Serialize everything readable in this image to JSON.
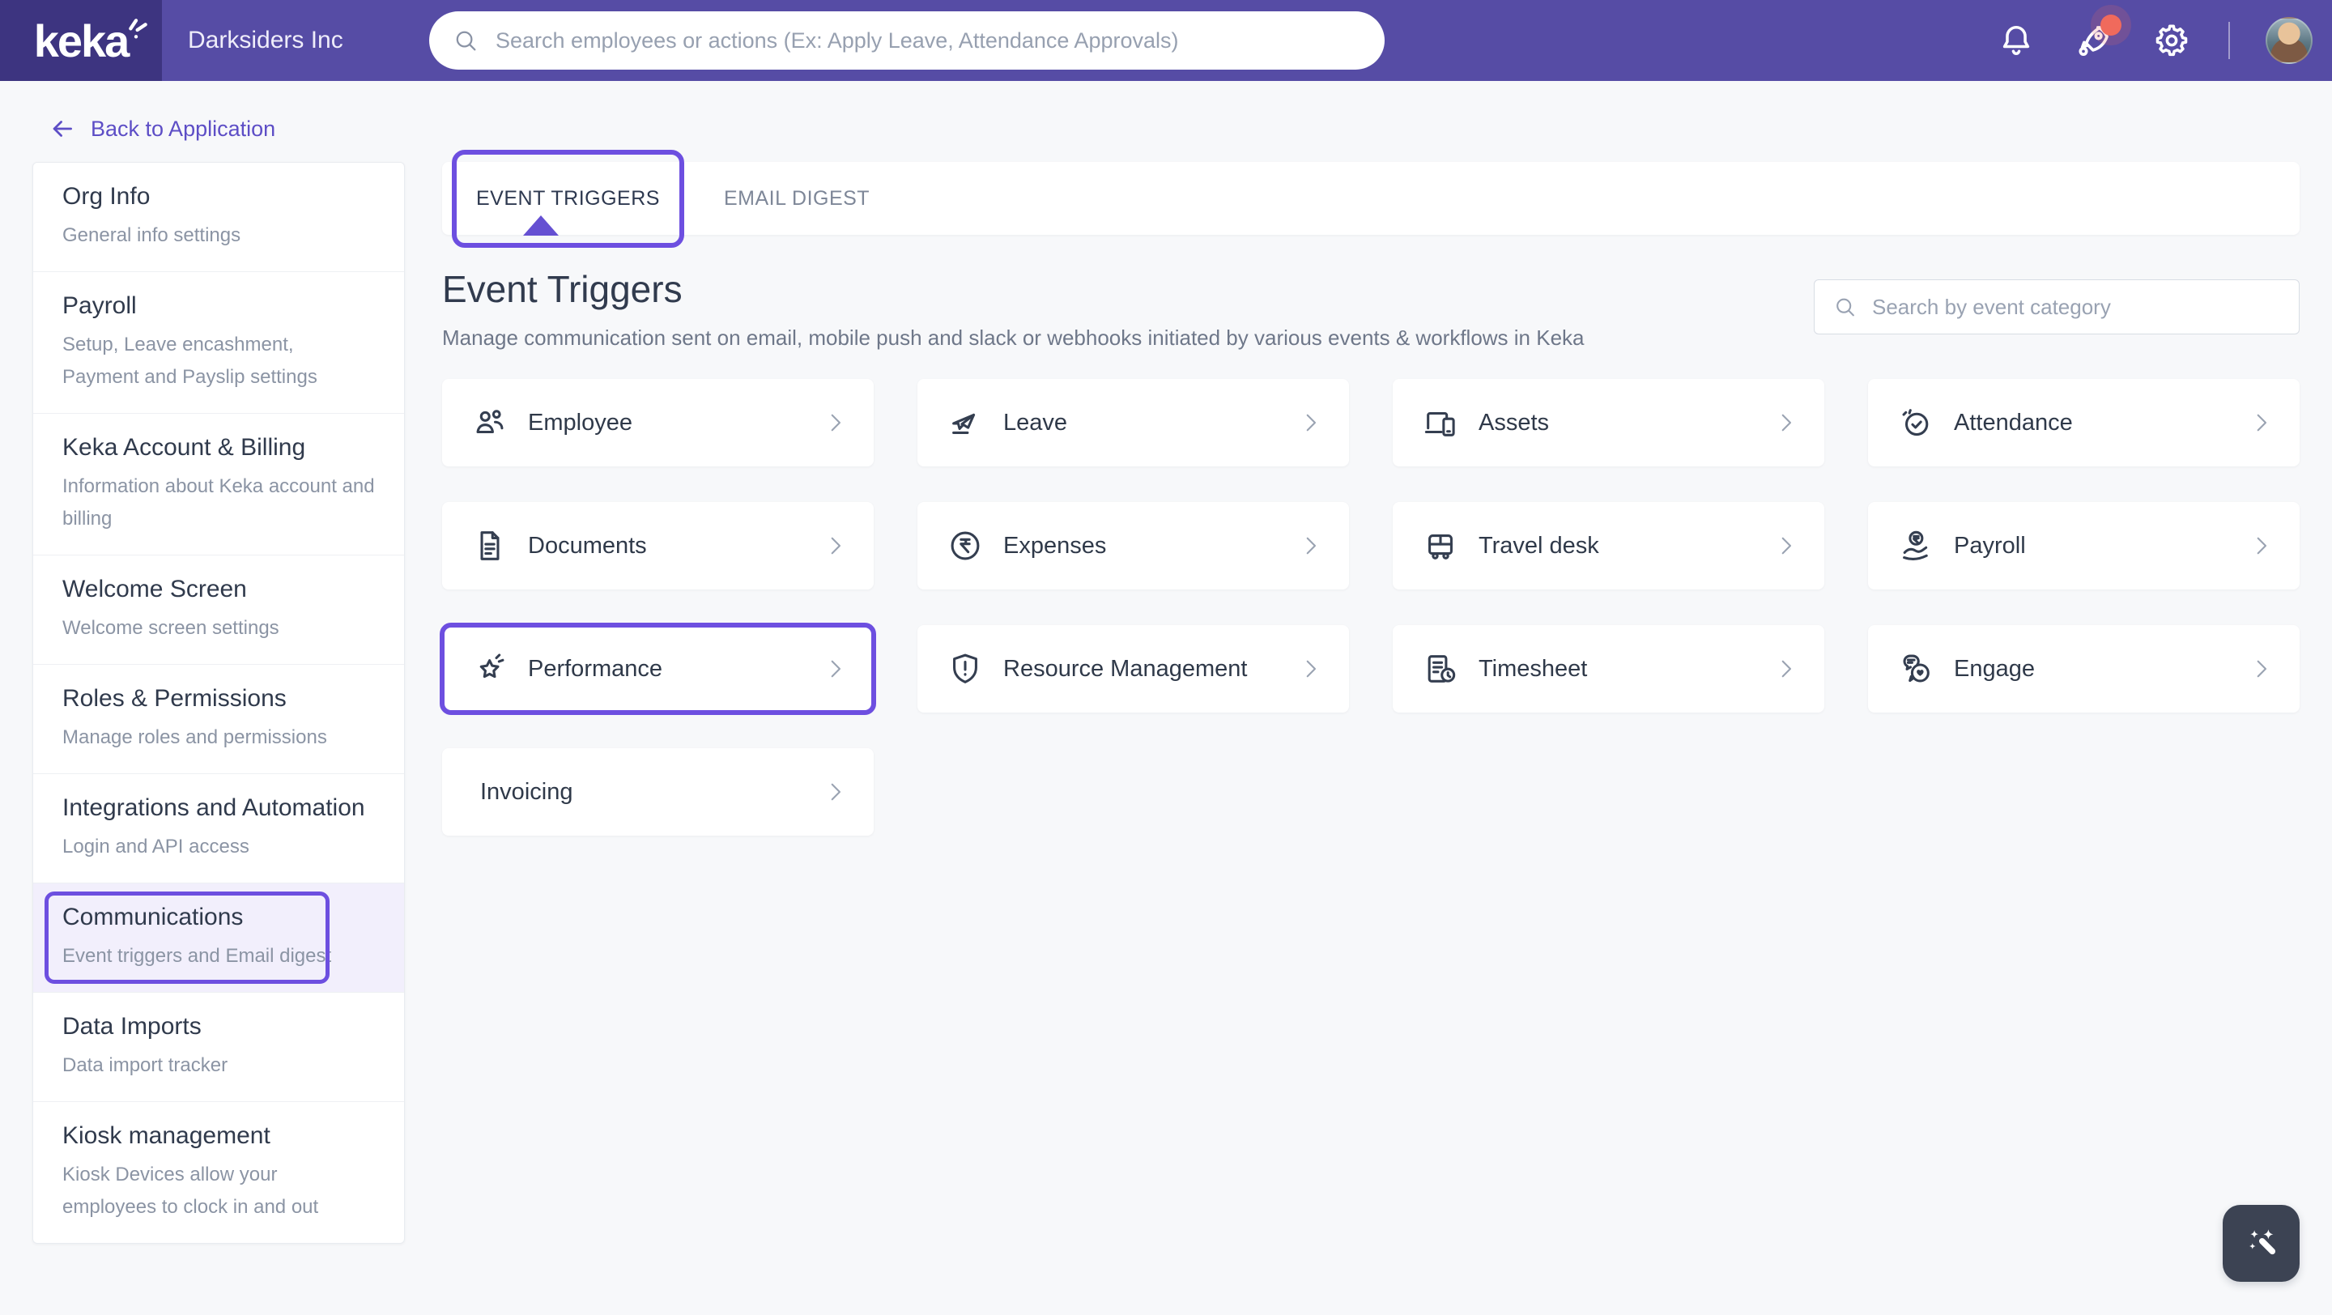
{
  "header": {
    "brand": "keka",
    "company": "Darksiders Inc",
    "search_placeholder": "Search employees or actions (Ex: Apply Leave, Attendance Approvals)",
    "icons": [
      "bell-icon",
      "rocket-icon",
      "gear-icon",
      "avatar"
    ],
    "rocket_has_notification_badge": true
  },
  "back_link": {
    "label": "Back to Application",
    "icon": "arrow-left-icon"
  },
  "sidebar": {
    "items": [
      {
        "title": "Org Info",
        "desc": "General info settings",
        "active": false
      },
      {
        "title": "Payroll",
        "desc": "Setup, Leave encashment, Payment and Payslip settings",
        "active": false
      },
      {
        "title": "Keka Account & Billing",
        "desc": "Information about Keka account and billing",
        "active": false
      },
      {
        "title": "Welcome Screen",
        "desc": "Welcome screen settings",
        "active": false
      },
      {
        "title": "Roles & Permissions",
        "desc": "Manage roles and permissions",
        "active": false
      },
      {
        "title": "Integrations and Automation",
        "desc": "Login and API access",
        "active": false
      },
      {
        "title": "Communications",
        "desc": "Event triggers and Email digest",
        "active": true
      },
      {
        "title": "Data Imports",
        "desc": "Data import tracker",
        "active": false
      },
      {
        "title": "Kiosk management",
        "desc": "Kiosk Devices allow your employees to clock in and out",
        "active": false
      }
    ]
  },
  "tabs": [
    {
      "label": "EVENT TRIGGERS",
      "active": true
    },
    {
      "label": "EMAIL DIGEST",
      "active": false
    }
  ],
  "main": {
    "title": "Event Triggers",
    "subtitle": "Manage communication sent on email, mobile push and slack or webhooks initiated by various events & workflows in Keka",
    "category_search_placeholder": "Search by event category",
    "cards": [
      {
        "label": "Employee",
        "icon": "employee-icon",
        "annotated": false
      },
      {
        "label": "Leave",
        "icon": "leave-icon",
        "annotated": false
      },
      {
        "label": "Assets",
        "icon": "assets-icon",
        "annotated": false
      },
      {
        "label": "Attendance",
        "icon": "attendance-icon",
        "annotated": false
      },
      {
        "label": "Documents",
        "icon": "documents-icon",
        "annotated": false
      },
      {
        "label": "Expenses",
        "icon": "expenses-icon",
        "annotated": false
      },
      {
        "label": "Travel desk",
        "icon": "travel-desk-icon",
        "annotated": false
      },
      {
        "label": "Payroll",
        "icon": "payroll-icon",
        "annotated": false
      },
      {
        "label": "Performance",
        "icon": "performance-icon",
        "annotated": true
      },
      {
        "label": "Resource Management",
        "icon": "resource-management-icon",
        "annotated": false
      },
      {
        "label": "Timesheet",
        "icon": "timesheet-icon",
        "annotated": false
      },
      {
        "label": "Engage",
        "icon": "engage-icon",
        "annotated": false
      },
      {
        "label": "Invoicing",
        "icon": null,
        "annotated": false
      }
    ]
  },
  "fab": {
    "icon": "magic-wand-icon"
  },
  "colors": {
    "header_purple": "#564ca5",
    "logo_purple": "#3d3480",
    "annotation_purple": "#6d4fe0",
    "notification_red": "#f06a5c",
    "ink": "#2f3a4d",
    "muted_text": "#8b94a4",
    "page_background": "#f7f8fa",
    "fab_dark": "#3c4353"
  }
}
